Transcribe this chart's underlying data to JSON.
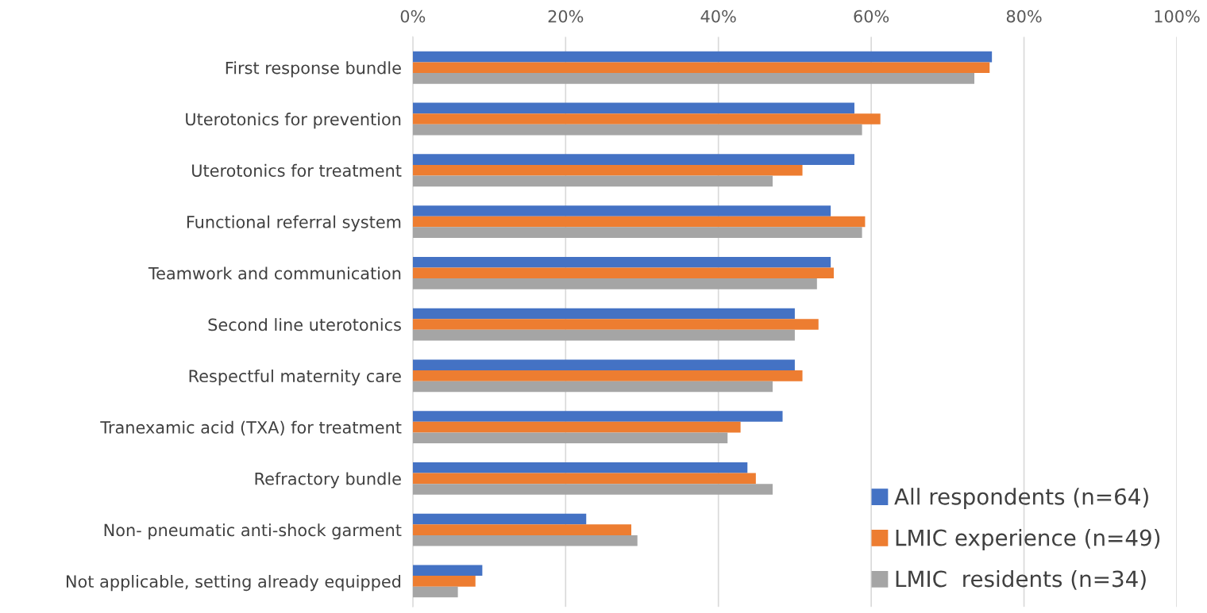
{
  "chart_data": {
    "type": "bar",
    "orientation": "horizontal",
    "categories": [
      "First response bundle",
      "Uterotonics for prevention",
      "Uterotonics for treatment",
      "Functional referral system",
      "Teamwork and communication",
      "Second line uterotonics",
      "Respectful maternity care",
      "Tranexamic acid (TXA) for treatment",
      "Refractory bundle",
      "Non- pneumatic anti-shock garment",
      "Not applicable, setting already equipped"
    ],
    "series": [
      {
        "name": "All respondents (n=64)",
        "color": "#4472c4",
        "values": [
          75.8,
          57.8,
          57.8,
          54.7,
          54.7,
          50.0,
          50.0,
          48.4,
          43.8,
          22.7,
          9.1
        ]
      },
      {
        "name": "LMIC experience (n=49)",
        "color": "#ed7d31",
        "values": [
          75.5,
          61.2,
          51.0,
          59.2,
          55.1,
          53.1,
          51.0,
          42.9,
          44.9,
          28.6,
          8.2
        ]
      },
      {
        "name": "LMIC  residents (n=34)",
        "color": "#a5a5a5",
        "values": [
          73.5,
          58.8,
          47.1,
          58.8,
          52.9,
          50.0,
          47.1,
          41.2,
          47.1,
          29.4,
          5.9
        ]
      }
    ],
    "xlim": [
      0,
      100
    ],
    "xticks": [
      {
        "value": 0,
        "label": "0%"
      },
      {
        "value": 20,
        "label": "20%"
      },
      {
        "value": 40,
        "label": "40%"
      },
      {
        "value": 60,
        "label": "60%"
      },
      {
        "value": 80,
        "label": "80%"
      },
      {
        "value": 100,
        "label": "100%"
      }
    ],
    "grid": "x",
    "legend": "bottom right"
  }
}
